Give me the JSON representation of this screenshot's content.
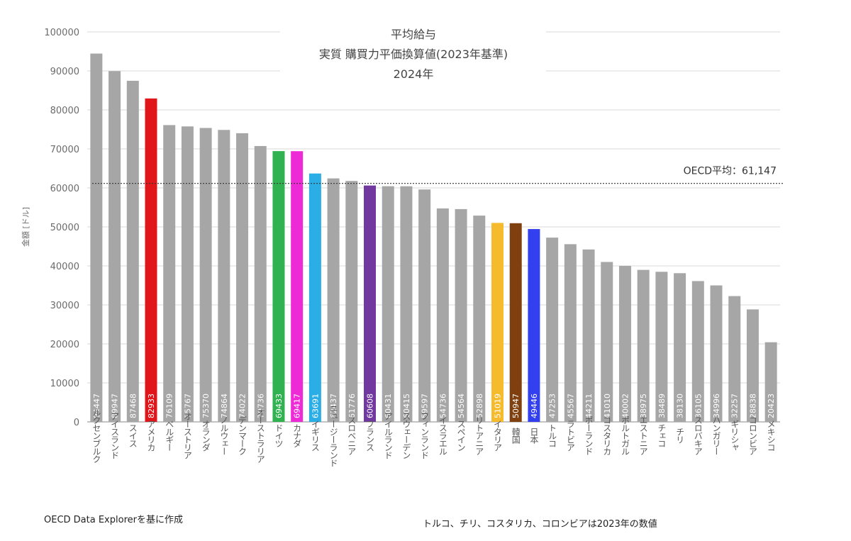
{
  "chart_data": {
    "type": "bar",
    "title": [
      "平均給与",
      "実質 購買力平価換算値(2023年基準)",
      "2024年"
    ],
    "ylabel": "金額 [ドル]",
    "xlabel": "",
    "ylim": [
      0,
      100000
    ],
    "yticks": [
      0,
      10000,
      20000,
      30000,
      40000,
      50000,
      60000,
      70000,
      80000,
      90000,
      100000
    ],
    "grid": true,
    "categories": [
      "ルクセンブルク",
      "アイスランド",
      "スイス",
      "アメリカ",
      "ベルギー",
      "オーストリア",
      "オランダ",
      "ノルウェー",
      "デンマーク",
      "オーストラリア",
      "ドイツ",
      "カナダ",
      "イギリス",
      "ニュージーランド",
      "スロベニア",
      "フランス",
      "アイルランド",
      "スウェーデン",
      "フィンランド",
      "イスラエル",
      "スペイン",
      "リトアニア",
      "イタリア",
      "韓国",
      "日本",
      "トルコ",
      "ラトビア",
      "ポーランド",
      "コスタリカ",
      "ポルトガル",
      "エストニア",
      "チェコ",
      "チリ",
      "スロバキア",
      "ハンガリー",
      "ギリシャ",
      "コロンビア",
      "メキシコ"
    ],
    "values": [
      94447,
      89947,
      87468,
      82933,
      76109,
      75767,
      75370,
      74864,
      74022,
      70736,
      69433,
      69417,
      63691,
      62437,
      61776,
      60608,
      60431,
      60415,
      59597,
      54736,
      54564,
      52898,
      51019,
      50947,
      49446,
      47253,
      45567,
      44211,
      41010,
      40002,
      38975,
      38489,
      38130,
      36105,
      34996,
      32257,
      28838,
      20423
    ],
    "colors": [
      "#a6a6a6",
      "#a6a6a6",
      "#a6a6a6",
      "#e0161b",
      "#a6a6a6",
      "#a6a6a6",
      "#a6a6a6",
      "#a6a6a6",
      "#a6a6a6",
      "#a6a6a6",
      "#2fb24f",
      "#ee2ad7",
      "#2bade6",
      "#a6a6a6",
      "#a6a6a6",
      "#7138a0",
      "#a6a6a6",
      "#a6a6a6",
      "#a6a6a6",
      "#a6a6a6",
      "#a6a6a6",
      "#a6a6a6",
      "#f5bb2d",
      "#7f3f0e",
      "#3340f0",
      "#a6a6a6",
      "#a6a6a6",
      "#a6a6a6",
      "#a6a6a6",
      "#a6a6a6",
      "#a6a6a6",
      "#a6a6a6",
      "#a6a6a6",
      "#a6a6a6",
      "#a6a6a6",
      "#a6a6a6",
      "#a6a6a6",
      "#a6a6a6"
    ],
    "reference_line": {
      "value": 61147,
      "label": "OECD平均：61,147"
    },
    "legend": "none"
  },
  "footnotes": {
    "source": "OECD Data Explorerを基に作成",
    "note": "トルコ、チリ、コスタリカ、コロンビアは2023年の数値"
  }
}
